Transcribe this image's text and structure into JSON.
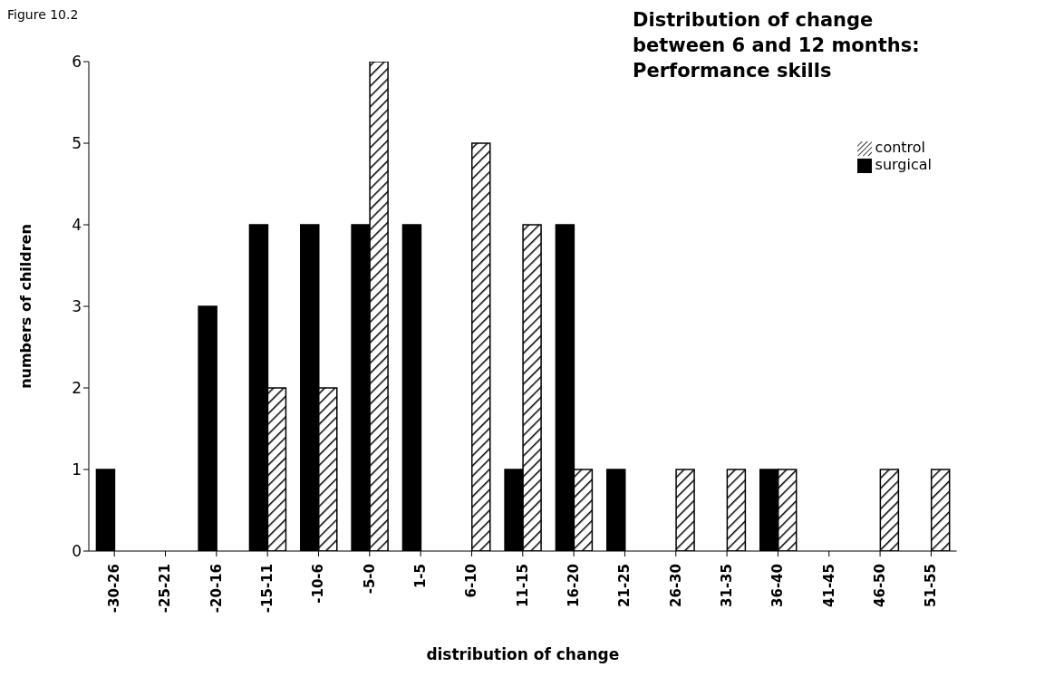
{
  "chart_data": {
    "type": "bar",
    "title": "Distribution of change\nbetween 6 and 12 months:\nPerformance skills",
    "xlabel": "distribution of change",
    "ylabel": "numbers of children",
    "annotations": [
      "Figure 10.2"
    ],
    "categories": [
      "-30-26",
      "-25-21",
      "-20-16",
      "-15-11",
      "-10-6",
      "-5-0",
      "1-5",
      "6-10",
      "11-15",
      "16-20",
      "21-25",
      "26-30",
      "31-35",
      "36-40",
      "41-45",
      "46-50",
      "51-55"
    ],
    "series": [
      {
        "name": "surgical",
        "color": "#000000",
        "values": [
          1,
          0,
          3,
          4,
          4,
          4,
          4,
          0,
          1,
          4,
          1,
          0,
          0,
          1,
          0,
          0,
          0
        ]
      },
      {
        "name": "control",
        "color": "#000000",
        "values": [
          0,
          0,
          0,
          2,
          2,
          6,
          0,
          5,
          4,
          1,
          0,
          1,
          1,
          1,
          0,
          1,
          1
        ]
      }
    ],
    "ylim": [
      0,
      6
    ],
    "yticks": [
      0,
      1,
      2,
      3,
      4,
      5,
      6
    ],
    "legend": "top right",
    "grid": false
  }
}
